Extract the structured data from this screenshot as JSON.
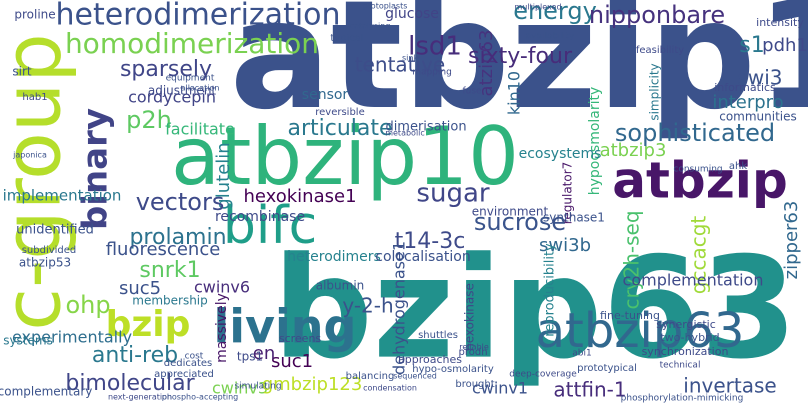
{
  "words": [
    {
      "text": "atbzip1",
      "color": "#3b528b"
    },
    {
      "text": "bzip63",
      "color": "#21918c"
    },
    {
      "text": "atbzip10",
      "color": "#2eb37c"
    },
    {
      "text": "c-group",
      "color": "#b5de2b"
    },
    {
      "text": "atbzip",
      "color": "#481668"
    },
    {
      "text": "living",
      "color": "#2c728e"
    },
    {
      "text": "atbzip63",
      "color": "#31688e"
    },
    {
      "text": "bifc",
      "color": "#1f9e89"
    },
    {
      "text": "binary",
      "color": "#414487"
    },
    {
      "text": "heterodimerization",
      "color": "#3b528b"
    },
    {
      "text": "homodimerization",
      "color": "#7ad151"
    },
    {
      "text": "bzip",
      "color": "#bddf26"
    },
    {
      "text": "energy",
      "color": "#2a788e"
    },
    {
      "text": "lsd1",
      "color": "#472d7b"
    },
    {
      "text": "atzip63",
      "color": "#46337e"
    },
    {
      "text": "nipponbare",
      "color": "#46327e"
    },
    {
      "text": "sixty-four",
      "color": "#472c7a"
    },
    {
      "text": "tentative",
      "color": "#3d4d8a"
    },
    {
      "text": "s1",
      "color": "#2a788e"
    },
    {
      "text": "pdh1",
      "color": "#3e4989"
    },
    {
      "text": "swi3",
      "color": "#3b528b"
    },
    {
      "text": "interpro",
      "color": "#2c728e"
    },
    {
      "text": "sophisticated",
      "color": "#31688e"
    },
    {
      "text": "sparsely",
      "color": "#404688"
    },
    {
      "text": "cordycepin",
      "color": "#414487"
    },
    {
      "text": "p2h",
      "color": "#5ec962"
    },
    {
      "text": "articulate",
      "color": "#2a788e"
    },
    {
      "text": "glutelin",
      "color": "#26828e"
    },
    {
      "text": "binary-vectors",
      "color": "#3e4a89"
    },
    {
      "text": "vectors",
      "color": "#3e4a89"
    },
    {
      "text": "sugar",
      "color": "#404688"
    },
    {
      "text": "sucrose",
      "color": "#3a548c"
    },
    {
      "text": "hexokinase1",
      "color": "#440154"
    },
    {
      "text": "prolamin",
      "color": "#2c728e"
    },
    {
      "text": "fluorescence",
      "color": "#3b528b"
    },
    {
      "text": "t14-3c",
      "color": "#3e4a89"
    },
    {
      "text": "swi3b",
      "color": "#31688e"
    },
    {
      "text": "atbzip3",
      "color": "#7ad151"
    },
    {
      "text": "cry2h-seq",
      "color": "#4ac16d"
    },
    {
      "text": "gccacgt",
      "color": "#a0da39"
    },
    {
      "text": "zipper63",
      "color": "#31688e"
    },
    {
      "text": "snrk1",
      "color": "#5ec962"
    },
    {
      "text": "suc5",
      "color": "#3b528b"
    },
    {
      "text": "cwinv6",
      "color": "#472d7b"
    },
    {
      "text": "ohp",
      "color": "#86d549"
    },
    {
      "text": "y-2-h",
      "color": "#3b528b"
    },
    {
      "text": "anti-reb",
      "color": "#2a788e"
    },
    {
      "text": "suc1",
      "color": "#440154"
    },
    {
      "text": "en",
      "color": "#481f70"
    },
    {
      "text": "bimolecular",
      "color": "#404688"
    },
    {
      "text": "cwinv3",
      "color": "#7ad151"
    },
    {
      "text": "gmbzip123",
      "color": "#bddf26"
    },
    {
      "text": "cwinv1",
      "color": "#3b528b"
    },
    {
      "text": "attfin-1",
      "color": "#472d7b"
    },
    {
      "text": "invertase",
      "color": "#3b528b"
    },
    {
      "text": "complementation",
      "color": "#3e4a89"
    },
    {
      "text": "dehydrogenase1",
      "color": "#3b528b"
    },
    {
      "text": "hexokinase",
      "color": "#404688"
    },
    {
      "text": "reproducibility",
      "color": "#26828e"
    },
    {
      "text": "regulator7",
      "color": "#481668"
    },
    {
      "text": "hypoosmolarity",
      "color": "#35b779"
    },
    {
      "text": "kin10",
      "color": "#31688e"
    },
    {
      "text": "glucose",
      "color": "#414487"
    },
    {
      "text": "ecosystems",
      "color": "#26828e"
    },
    {
      "text": "experimentally",
      "color": "#2e6e8e"
    },
    {
      "text": "membership",
      "color": "#2a788e"
    },
    {
      "text": "massively",
      "color": "#481668"
    },
    {
      "text": "implementation",
      "color": "#2a788e"
    },
    {
      "text": "recombinase",
      "color": "#3e4a89"
    },
    {
      "text": "heterodimers",
      "color": "#26828e"
    },
    {
      "text": "colocalisation",
      "color": "#3b528b"
    },
    {
      "text": "sensor",
      "color": "#31688e"
    },
    {
      "text": "unidentified",
      "color": "#3b528b"
    },
    {
      "text": "facilitate",
      "color": "#35b779"
    },
    {
      "text": "adjustment",
      "color": "#3e4a89"
    },
    {
      "text": "dimerisation",
      "color": "#3b528b"
    },
    {
      "text": "environment",
      "color": "#3e4a89"
    },
    {
      "text": "synthase1",
      "color": "#3b528b"
    },
    {
      "text": "communities",
      "color": "#3b528b"
    },
    {
      "text": "informatics",
      "color": "#3e4a89"
    },
    {
      "text": "intensity",
      "color": "#3e4a89"
    },
    {
      "text": "simplicity",
      "color": "#2a788e"
    },
    {
      "text": "albumin",
      "color": "#3b528b"
    },
    {
      "text": "shuttles",
      "color": "#3b528b"
    },
    {
      "text": "prodh",
      "color": "#3e4a89"
    },
    {
      "text": "fine-tuning",
      "color": "#3b528b"
    },
    {
      "text": "synergistic",
      "color": "#3e4a89"
    },
    {
      "text": "two-hybrid",
      "color": "#3b528b"
    },
    {
      "text": "synchronization",
      "color": "#3e4a89"
    },
    {
      "text": "hypo-osmolarity",
      "color": "#3b528b"
    },
    {
      "text": "deep-coverage",
      "color": "#3e4a89"
    },
    {
      "text": "prototypical",
      "color": "#3b528b"
    },
    {
      "text": "approaches",
      "color": "#3e4a89"
    },
    {
      "text": "balancing",
      "color": "#3b528b"
    },
    {
      "text": "systems",
      "color": "#2a788e"
    },
    {
      "text": "atbzip53",
      "color": "#3b528b"
    },
    {
      "text": "proline",
      "color": "#3e4a89"
    },
    {
      "text": "sirt",
      "color": "#3b528b"
    },
    {
      "text": "hab1",
      "color": "#3e4a89"
    },
    {
      "text": "japonica",
      "color": "#3b528b"
    },
    {
      "text": "subdivided",
      "color": "#3b528b"
    },
    {
      "text": "complementary",
      "color": "#3b528b"
    },
    {
      "text": "tps1",
      "color": "#3e4a89"
    },
    {
      "text": "simulating",
      "color": "#3b528b"
    },
    {
      "text": "dedicates",
      "color": "#3b528b"
    },
    {
      "text": "appreciated",
      "color": "#3b528b"
    },
    {
      "text": "cost",
      "color": "#3b528b"
    },
    {
      "text": "screens",
      "color": "#3e4a89"
    },
    {
      "text": "typical",
      "color": "#3b528b"
    },
    {
      "text": "reversible",
      "color": "#3e4a89"
    },
    {
      "text": "catalysing",
      "color": "#3b528b"
    },
    {
      "text": "availability",
      "color": "#3b528b"
    },
    {
      "text": "feasibility",
      "color": "#3e4a89"
    },
    {
      "text": "mapping",
      "color": "#3e4a89"
    },
    {
      "text": "sink",
      "color": "#3b528b"
    },
    {
      "text": "fuse",
      "color": "#3e4a89"
    },
    {
      "text": "equipment",
      "color": "#3b528b"
    },
    {
      "text": "allocation",
      "color": "#3b528b"
    },
    {
      "text": "ahk",
      "color": "#3b528b"
    },
    {
      "text": "abscisic",
      "color": "#3b528b"
    },
    {
      "text": "reliable",
      "color": "#3e4a89"
    },
    {
      "text": "lepri",
      "color": "#3b528b"
    },
    {
      "text": "metabolic",
      "color": "#3e4a89"
    },
    {
      "text": "consuming",
      "color": "#3b528b"
    },
    {
      "text": "abi1",
      "color": "#3e4a89"
    },
    {
      "text": "sequenced",
      "color": "#3b528b"
    },
    {
      "text": "brought",
      "color": "#3b528b"
    },
    {
      "text": "technical",
      "color": "#3e4a89"
    },
    {
      "text": "phosphorylation-mimicking",
      "color": "#3b528b"
    },
    {
      "text": "next-generation",
      "color": "#3e4a89"
    },
    {
      "text": "phospho-accepting",
      "color": "#3b528b"
    },
    {
      "text": "condensation",
      "color": "#3e4a89"
    },
    {
      "text": "protoplasts",
      "color": "#3b528b"
    },
    {
      "text": "multiplexed",
      "color": "#3e4a89"
    },
    {
      "text": "cdc",
      "color": "#3b528b"
    }
  ]
}
